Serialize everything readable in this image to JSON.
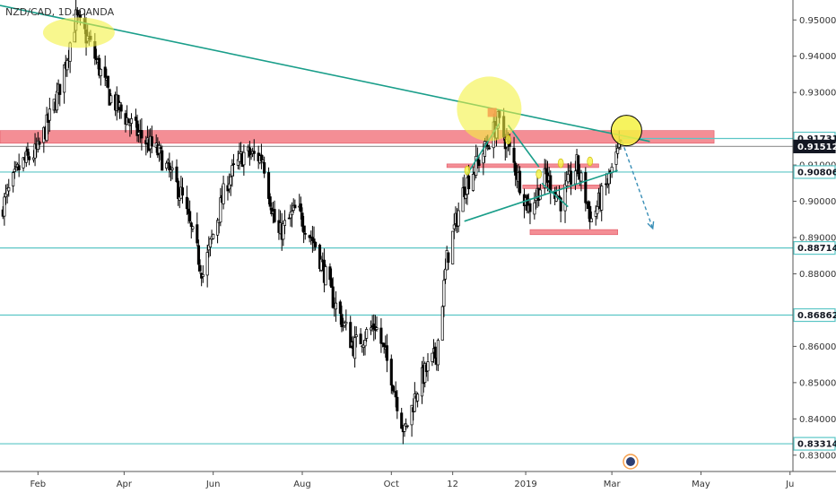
{
  "chart_data": {
    "type": "candlestick",
    "title": "NZD/CAD, 1D, OANDA",
    "ylim": [
      0.8255,
      0.9555
    ],
    "y_ticks": [
      {
        "value": 0.95,
        "label": "0.95000"
      },
      {
        "value": 0.94,
        "label": "0.94000"
      },
      {
        "value": 0.93,
        "label": "0.93000"
      },
      {
        "value": 0.91,
        "label": "0.91000"
      },
      {
        "value": 0.9,
        "label": "0.90000"
      },
      {
        "value": 0.89,
        "label": "0.89000"
      },
      {
        "value": 0.88,
        "label": "0.88000"
      },
      {
        "value": 0.86,
        "label": "0.86000"
      },
      {
        "value": 0.85,
        "label": "0.85000"
      },
      {
        "value": 0.84,
        "label": "0.84000"
      },
      {
        "value": 0.83,
        "label": "0.83000"
      }
    ],
    "x_ticks": [
      {
        "label": "Feb",
        "date": "2018-02-01"
      },
      {
        "label": "Apr",
        "date": "2018-04-01"
      },
      {
        "label": "Jun",
        "date": "2018-06-01"
      },
      {
        "label": "Aug",
        "date": "2018-08-01"
      },
      {
        "label": "Oct",
        "date": "2018-10-01"
      },
      {
        "label": "12",
        "date": "2018-11-12"
      },
      {
        "label": "2019",
        "date": "2019-01-01"
      },
      {
        "label": "Mar",
        "date": "2019-03-01"
      },
      {
        "label": "May",
        "date": "2019-05-01"
      },
      {
        "label": "Ju",
        "date": "2019-07-01"
      }
    ],
    "date_range": [
      "2018-01-06",
      "2019-07-03"
    ],
    "price_anchors": [
      [
        "2018-01-06",
        0.897
      ],
      [
        "2018-01-20",
        0.91
      ],
      [
        "2018-02-01",
        0.914
      ],
      [
        "2018-02-15",
        0.93
      ],
      [
        "2018-02-27",
        0.9505
      ],
      [
        "2018-03-08",
        0.944
      ],
      [
        "2018-03-22",
        0.929
      ],
      [
        "2018-04-10",
        0.919
      ],
      [
        "2018-04-25",
        0.913
      ],
      [
        "2018-05-10",
        0.902
      ],
      [
        "2018-05-25",
        0.88
      ],
      [
        "2018-06-10",
        0.905
      ],
      [
        "2018-06-22",
        0.913
      ],
      [
        "2018-07-05",
        0.912
      ],
      [
        "2018-07-15",
        0.89
      ],
      [
        "2018-07-28",
        0.898
      ],
      [
        "2018-08-10",
        0.888
      ],
      [
        "2018-08-22",
        0.873
      ],
      [
        "2018-09-05",
        0.86
      ],
      [
        "2018-09-20",
        0.866
      ],
      [
        "2018-10-01",
        0.852
      ],
      [
        "2018-10-10",
        0.836
      ],
      [
        "2018-10-20",
        0.85
      ],
      [
        "2018-11-01",
        0.858
      ],
      [
        "2018-11-08",
        0.884
      ],
      [
        "2018-11-20",
        0.904
      ],
      [
        "2018-12-05",
        0.915
      ],
      [
        "2018-12-13",
        0.922
      ],
      [
        "2018-12-20",
        0.915
      ],
      [
        "2019-01-03",
        0.898
      ],
      [
        "2019-01-15",
        0.907
      ],
      [
        "2019-01-25",
        0.9
      ],
      [
        "2019-02-05",
        0.91
      ],
      [
        "2019-02-15",
        0.895
      ],
      [
        "2019-02-25",
        0.904
      ],
      [
        "2019-03-07",
        0.9151
      ]
    ],
    "price_tags": [
      {
        "value": 0.91731,
        "label": "0.91731",
        "style": "outline"
      },
      {
        "value": 0.91512,
        "label": "0.91512",
        "style": "filled"
      },
      {
        "value": 0.90806,
        "label": "0.90806",
        "style": "outline"
      },
      {
        "value": 0.88714,
        "label": "0.88714",
        "style": "outline"
      },
      {
        "value": 0.86862,
        "label": "0.86862",
        "style": "outline"
      },
      {
        "value": 0.83314,
        "label": "0.83314",
        "style": "outline"
      }
    ],
    "horizontal_lines": [
      {
        "value": 0.91731,
        "from": "2019-03-08",
        "to": "2019-07-03",
        "color": "#5bc6c6"
      },
      {
        "value": 0.91512,
        "from": "2018-01-06",
        "to": "2019-07-03",
        "color": "#9e9e9e"
      },
      {
        "value": 0.90806,
        "from": "2018-01-06",
        "to": "2019-07-03",
        "color": "#5bc6c6"
      },
      {
        "value": 0.88714,
        "from": "2018-01-06",
        "to": "2019-07-03",
        "color": "#5bc6c6"
      },
      {
        "value": 0.86862,
        "from": "2018-01-06",
        "to": "2019-07-03",
        "color": "#5bc6c6"
      },
      {
        "value": 0.83314,
        "from": "2018-01-06",
        "to": "2019-07-03",
        "color": "#5bc6c6"
      }
    ],
    "zones": [
      {
        "from": "2018-01-06",
        "to": "2019-05-10",
        "low": 0.916,
        "high": 0.9195,
        "color": "#f27a82"
      },
      {
        "from": "2018-11-08",
        "to": "2019-02-20",
        "low": 0.9093,
        "high": 0.9103,
        "color": "#f27a82"
      },
      {
        "from": "2018-12-30",
        "to": "2019-02-21",
        "low": 0.9035,
        "high": 0.9045,
        "color": "#f27a82"
      },
      {
        "from": "2019-01-04",
        "to": "2019-03-05",
        "low": 0.8908,
        "high": 0.8922,
        "color": "#f27a82"
      }
    ],
    "trendlines": [
      {
        "from": [
          "2018-01-06",
          0.954
        ],
        "to": [
          "2019-03-27",
          0.9165
        ],
        "color": "#1a9e8a"
      },
      {
        "from": [
          "2018-11-20",
          0.8945
        ],
        "to": [
          "2019-03-05",
          0.9085
        ],
        "color": "#1a9e8a"
      },
      {
        "from": [
          "2018-11-22",
          0.9075
        ],
        "to": [
          "2018-12-14",
          0.9215
        ],
        "color": "#1a9e8a"
      },
      {
        "from": [
          "2018-12-20",
          0.921
        ],
        "to": [
          "2019-01-10",
          0.9095
        ],
        "color": "#1a9e8a"
      },
      {
        "from": [
          "2019-01-12",
          0.905
        ],
        "to": [
          "2019-01-30",
          0.8985
        ],
        "color": "#1a9e8a"
      }
    ],
    "projection_arrow": {
      "from": [
        "2019-03-08",
        0.9165
      ],
      "to": [
        "2019-03-29",
        0.8925
      ],
      "color": "#3a8fb7"
    },
    "highlight_circles": [
      {
        "date": "2018-03-01",
        "value": 0.9465,
        "kind": "yellow-ellipse"
      },
      {
        "date": "2018-12-07",
        "value": 0.9255,
        "kind": "yellow-circle"
      },
      {
        "date": "2019-03-11",
        "value": 0.9195,
        "kind": "yellow-circle-outlined"
      }
    ],
    "small_markers": [
      {
        "date": "2018-11-22",
        "value": 0.9085
      },
      {
        "date": "2018-12-20",
        "value": 0.917
      },
      {
        "date": "2019-01-10",
        "value": 0.9075
      },
      {
        "date": "2019-01-25",
        "value": 0.9105
      },
      {
        "date": "2019-02-14",
        "value": 0.911
      }
    ],
    "peak_marker": {
      "date": "2018-12-09",
      "value": 0.9245
    },
    "colors": {
      "up": "#ffffff",
      "down": "#000000",
      "wick": "#000000",
      "accent_cyan": "#5bc6c6",
      "zone_red": "#f27a82",
      "trend_green": "#1a9e8a",
      "arrow_blue": "#3a8fb7",
      "highlight_yellow": "#f4f142",
      "marker_orange": "#f6a04d"
    },
    "grid": false,
    "legend": "none"
  }
}
